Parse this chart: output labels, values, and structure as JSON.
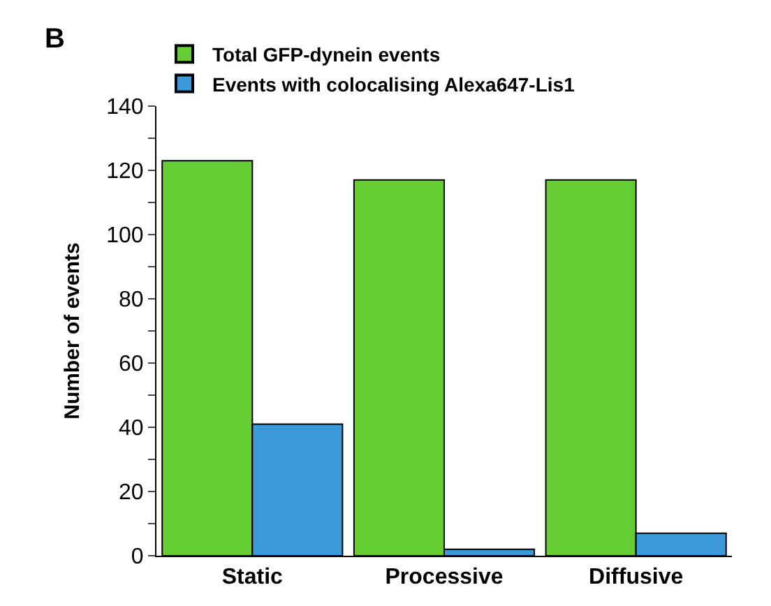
{
  "chart_data": {
    "type": "bar",
    "ylabel": "Number of events",
    "categories": [
      "Static",
      "Processive",
      "Diffusive"
    ],
    "series": [
      {
        "name": "Total GFP-dynein events",
        "color": "#66cc33",
        "values": [
          123,
          117,
          117
        ]
      },
      {
        "name": "Events with colocalising Alexa647-Lis1",
        "color": "#3d9ad9",
        "values": [
          41,
          2,
          7
        ]
      }
    ],
    "ylim": [
      0,
      140
    ],
    "yticks": [
      0,
      {
        "value": 10,
        "label": null
      },
      20,
      {
        "value": 30,
        "label": null
      },
      40,
      {
        "value": 50,
        "label": null
      },
      60,
      {
        "value": 70,
        "label": null
      },
      80,
      {
        "value": 90,
        "label": null
      },
      100,
      {
        "value": 110,
        "label": null
      },
      120,
      {
        "value": 130,
        "label": null
      },
      140
    ],
    "annotations": [
      "B"
    ],
    "legend": "top"
  }
}
